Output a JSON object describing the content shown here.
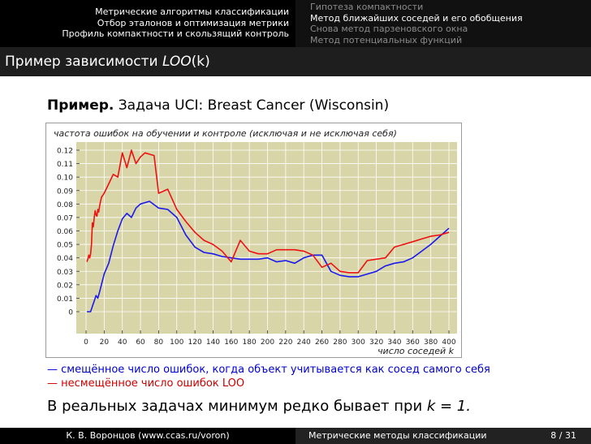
{
  "nav": {
    "left": [
      "Метрические алгоритмы классификации",
      "Отбор эталонов и оптимизация метрики",
      "Профиль компактности и скользящий контроль"
    ],
    "right": [
      "Гипотеза компактности",
      "Метод ближайших соседей и его обобщения",
      "Снова метод парзеновского окна",
      "Метод потенциальных функций"
    ]
  },
  "frame": {
    "title_prefix": "Пример зависимости ",
    "title_math": "LOO",
    "title_arg": "(k)"
  },
  "example": {
    "keyword": "Пример.",
    "text": " Задача UCI: Breast Cancer (Wisconsin)"
  },
  "notes": {
    "blue": "— смещённое число ошибок, когда объект учитывается как сосед самого себя",
    "red": "— несмещённое число ошибок LOO"
  },
  "conclusion": {
    "text": "В реальных задачах минимум редко бывает при ",
    "math": "k = 1."
  },
  "footer": {
    "author": "К. В. Воронцов (www.ccas.ru/voron)",
    "course": "Метрические методы классификации",
    "page": "8 / 31"
  },
  "colors": {
    "plot_bg": "#d8d5a8",
    "blue": "#1a1aee",
    "red": "#ee1111",
    "grid": "#ffffff"
  },
  "chart_data": {
    "type": "line",
    "title": "частота ошибок на обучении и контроле (исключая и не исключая себя)",
    "xlabel": "число соседей k",
    "ylabel": "",
    "xlim": [
      0,
      400
    ],
    "ylim": [
      0,
      0.12
    ],
    "xticks": [
      "0",
      "20",
      "40",
      "60",
      "80",
      "100",
      "120",
      "140",
      "160",
      "180",
      "200",
      "220",
      "240",
      "260",
      "280",
      "300",
      "320",
      "340",
      "360",
      "380",
      "400"
    ],
    "yticks": [
      "0",
      "0.01",
      "0.02",
      "0.03",
      "0.04",
      "0.05",
      "0.06",
      "0.07",
      "0.08",
      "0.09",
      "0.10",
      "0.11",
      "0.12"
    ],
    "grid": true,
    "series": [
      {
        "color": "#1a1aee",
        "x": [
          1,
          3,
          5,
          7,
          9,
          11,
          13,
          15,
          20,
          25,
          30,
          35,
          40,
          45,
          50,
          55,
          60,
          70,
          80,
          90,
          100,
          110,
          120,
          130,
          140,
          150,
          160,
          170,
          180,
          190,
          200,
          210,
          220,
          230,
          240,
          250,
          260,
          270,
          280,
          290,
          300,
          310,
          320,
          330,
          340,
          350,
          360,
          370,
          380,
          390,
          400
        ],
        "y": [
          0,
          0,
          0,
          0.004,
          0.008,
          0.012,
          0.01,
          0.015,
          0.028,
          0.036,
          0.049,
          0.06,
          0.069,
          0.073,
          0.07,
          0.077,
          0.08,
          0.082,
          0.077,
          0.076,
          0.07,
          0.057,
          0.048,
          0.044,
          0.043,
          0.041,
          0.04,
          0.039,
          0.039,
          0.039,
          0.04,
          0.037,
          0.038,
          0.036,
          0.04,
          0.042,
          0.042,
          0.03,
          0.027,
          0.026,
          0.026,
          0.028,
          0.03,
          0.034,
          0.036,
          0.037,
          0.04,
          0.045,
          0.05,
          0.056,
          0.062
        ]
      },
      {
        "color": "#ee1111",
        "x": [
          1,
          2,
          3,
          4,
          5,
          6,
          7,
          8,
          9,
          10,
          11,
          12,
          13,
          14,
          15,
          17,
          20,
          25,
          30,
          35,
          40,
          45,
          50,
          55,
          60,
          65,
          70,
          75,
          80,
          90,
          100,
          110,
          120,
          130,
          140,
          150,
          160,
          170,
          180,
          190,
          200,
          210,
          220,
          230,
          240,
          250,
          260,
          270,
          280,
          290,
          300,
          310,
          320,
          330,
          340,
          350,
          360,
          370,
          380,
          390,
          400
        ],
        "y": [
          0.037,
          0.039,
          0.042,
          0.04,
          0.043,
          0.05,
          0.066,
          0.063,
          0.07,
          0.075,
          0.072,
          0.071,
          0.076,
          0.074,
          0.079,
          0.085,
          0.088,
          0.095,
          0.102,
          0.1,
          0.118,
          0.107,
          0.12,
          0.11,
          0.115,
          0.118,
          0.117,
          0.116,
          0.088,
          0.091,
          0.076,
          0.067,
          0.059,
          0.053,
          0.05,
          0.045,
          0.037,
          0.053,
          0.045,
          0.043,
          0.043,
          0.046,
          0.046,
          0.046,
          0.045,
          0.042,
          0.033,
          0.036,
          0.03,
          0.029,
          0.029,
          0.038,
          0.039,
          0.04,
          0.048,
          0.05,
          0.052,
          0.054,
          0.056,
          0.057,
          0.059
        ]
      }
    ]
  }
}
